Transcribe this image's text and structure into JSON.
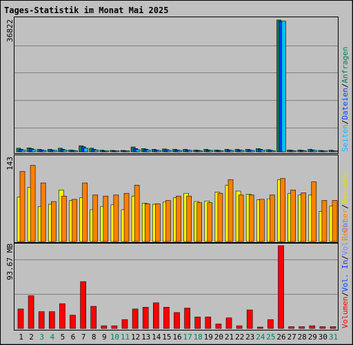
{
  "chart_data": {
    "type": "bar",
    "title": "Tages-Statistik im Monat Mai 2025",
    "categories": [
      "1",
      "2",
      "3",
      "4",
      "5",
      "6",
      "7",
      "8",
      "9",
      "10",
      "11",
      "12",
      "13",
      "14",
      "15",
      "16",
      "17",
      "18",
      "19",
      "20",
      "21",
      "22",
      "23",
      "24",
      "25",
      "26",
      "27",
      "28",
      "29",
      "30",
      "31"
    ],
    "weekend_days": [
      "3",
      "4",
      "10",
      "11",
      "17",
      "18",
      "24",
      "25",
      "31"
    ],
    "colors": {
      "background": "#c0c0c0",
      "title": "#0000ff",
      "anfragen": "#00805c",
      "dateien": "#0040ff",
      "seiten": "#00c0ff",
      "besuche": "#ffff00",
      "rechner": "#ff8000",
      "vol_out": "#8080ff",
      "vol_in": "#0040ff",
      "volumen": "#ff0000",
      "weekend_label": "#00805c",
      "weekday_label": "#000000"
    },
    "legend": {
      "anfragen": "Anfragen",
      "dateien": "Dateien",
      "seiten": "Seiten",
      "besuche": "Besuche",
      "rechner": "Rechner",
      "vol_out": "Vol. Out",
      "vol_in": "Vol. In",
      "volumen": "Volumen",
      "sep": "/"
    },
    "panels": [
      {
        "name": "hits",
        "ymax_label": "36822",
        "ylim": [
          0,
          36822
        ],
        "series": [
          {
            "name": "Anfragen",
            "values": [
              1000,
              1100,
              700,
              700,
              1000,
              500,
              1700,
              1000,
              450,
              400,
              400,
              1350,
              900,
              700,
              800,
              700,
              700,
              500,
              700,
              500,
              700,
              700,
              700,
              900,
              600,
              36822,
              500,
              500,
              700,
              400,
              450
            ]
          },
          {
            "name": "Dateien",
            "values": [
              700,
              900,
              500,
              500,
              700,
              400,
              1400,
              700,
              300,
              300,
              300,
              900,
              700,
              500,
              600,
              500,
              500,
              400,
              500,
              400,
              500,
              500,
              500,
              700,
              400,
              36500,
              400,
              400,
              500,
              300,
              300
            ]
          },
          {
            "name": "Seiten",
            "values": [
              500,
              600,
              400,
              400,
              500,
              300,
              1000,
              500,
              200,
              200,
              200,
              600,
              500,
              400,
              400,
              400,
              400,
              300,
              400,
              300,
              400,
              400,
              400,
              500,
              300,
              36500,
              300,
              300,
              400,
              200,
              200
            ]
          }
        ]
      },
      {
        "name": "visits",
        "ymax_label": "143",
        "ylim": [
          0,
          143
        ],
        "series": [
          {
            "name": "Besuche",
            "values": [
              81,
              99,
              64,
              68,
              94,
              75,
              80,
              58,
              64,
              67,
              58,
              83,
              70,
              68,
              72,
              80,
              88,
              73,
              74,
              90,
              103,
              92,
              86,
              76,
              78,
              113,
              88,
              85,
              85,
              55,
              65
            ]
          },
          {
            "name": "Rechner",
            "values": [
              128,
              139,
              107,
              73,
              83,
              77,
              107,
              85,
              83,
              85,
              88,
              103,
              69,
              69,
              75,
              83,
              83,
              71,
              71,
              88,
              113,
              85,
              85,
              77,
              85,
              115,
              94,
              89,
              109,
              75,
              75
            ]
          }
        ]
      },
      {
        "name": "volume",
        "ymax_label": "93.67 MB",
        "ylim": [
          0,
          93.67
        ],
        "series": [
          {
            "name": "Volumen",
            "values": [
              22,
              37,
              19,
              19,
              28,
              15,
              53,
              25,
              3,
              3,
              10,
              22,
              24,
              29,
              24,
              18,
              23,
              13,
              13,
              5,
              12,
              3,
              21,
              1,
              10,
              93.67,
              2,
              2,
              3,
              2,
              2
            ]
          }
        ]
      }
    ]
  }
}
